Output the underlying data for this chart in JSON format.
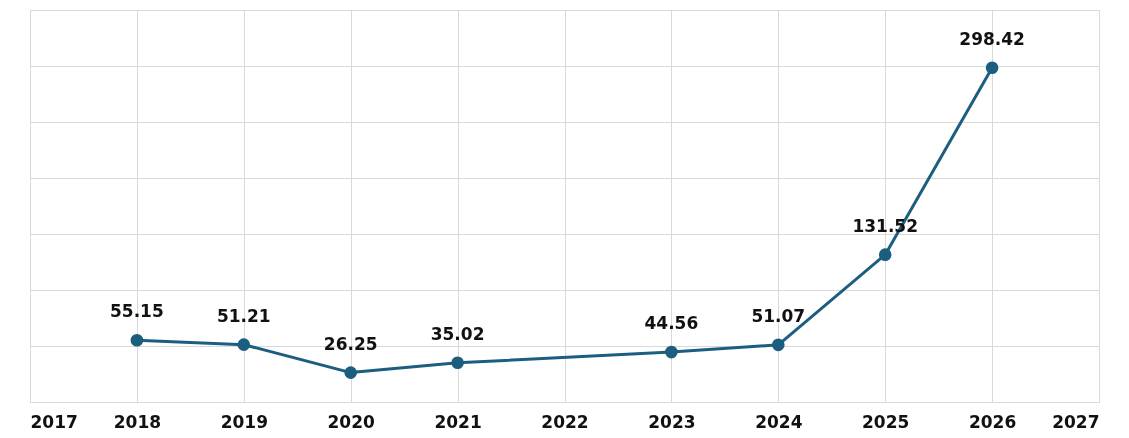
{
  "chart_data": {
    "type": "line",
    "x": [
      2018,
      2019,
      2020,
      2021,
      2023,
      2024,
      2025,
      2026
    ],
    "series": [
      {
        "color": "#1b5e80",
        "values": [
          55.15,
          51.21,
          26.25,
          35.02,
          44.56,
          51.07,
          131.52,
          298.42
        ]
      }
    ],
    "xlim": [
      2017,
      2027
    ],
    "xticks": [
      2017,
      2018,
      2019,
      2020,
      2021,
      2022,
      2023,
      2024,
      2025,
      2026,
      2027
    ],
    "ylim": [
      0,
      350
    ],
    "yticks": [
      {
        "value": 0,
        "label": null
      },
      {
        "value": 50,
        "label": null
      },
      {
        "value": 100,
        "label": null
      },
      {
        "value": 150,
        "label": null
      },
      {
        "value": 200,
        "label": null
      },
      {
        "value": 250,
        "label": null
      },
      {
        "value": 300,
        "label": null
      },
      {
        "value": 350,
        "label": null
      }
    ],
    "tick_labels": "x",
    "grid": true,
    "marker": "circle",
    "line_style": "solid",
    "data_labels": true
  }
}
